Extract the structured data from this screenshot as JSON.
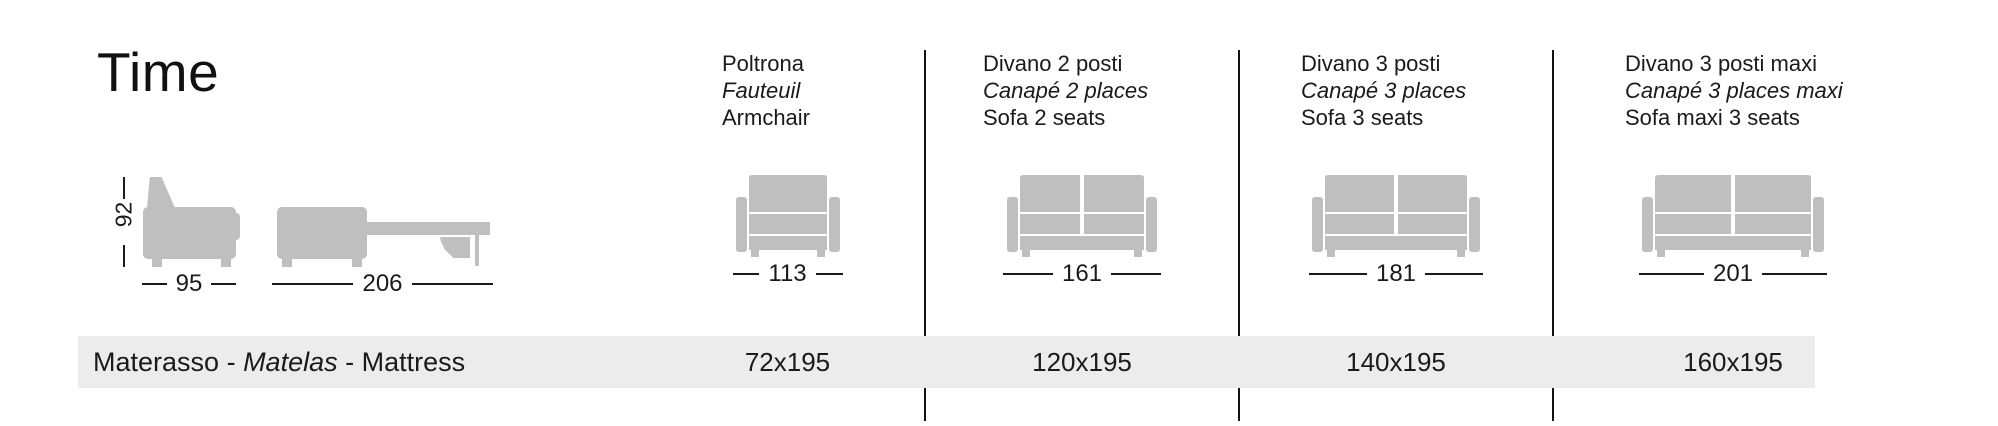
{
  "page": {
    "title": "Time"
  },
  "colors": {
    "icon_gray": "#bfbfbf",
    "band_bg": "#ececec",
    "line": "#1a1a1a"
  },
  "side_views": {
    "closed": {
      "height_label": "92",
      "width_label": "95"
    },
    "open": {
      "depth_label": "206"
    }
  },
  "band": {
    "label_it": "Materasso",
    "label_fr": "Matelas",
    "label_en": "Mattress",
    "separator": " - "
  },
  "products": [
    {
      "name_it": "Poltrona",
      "name_fr": "Fauteuil",
      "name_en": "Armchair",
      "width_label": "113",
      "mattress": "72x195",
      "seats": "single"
    },
    {
      "name_it": "Divano 2 posti",
      "name_fr": "Canapé 2 places",
      "name_en": "Sofa 2 seats",
      "width_label": "161",
      "mattress": "120x195",
      "seats": "double"
    },
    {
      "name_it": "Divano 3 posti",
      "name_fr": "Canapé 3 places",
      "name_en": "Sofa 3 seats",
      "width_label": "181",
      "mattress": "140x195",
      "seats": "double"
    },
    {
      "name_it": "Divano 3 posti maxi",
      "name_fr": "Canapé 3 places maxi",
      "name_en": "Sofa maxi 3 seats",
      "width_label": "201",
      "mattress": "160x195",
      "seats": "double"
    }
  ]
}
